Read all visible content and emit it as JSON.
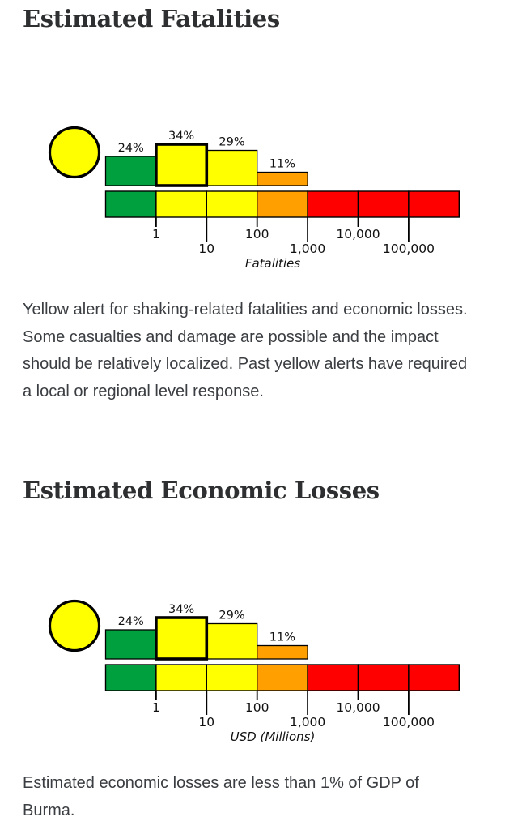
{
  "page": {
    "background": "#ffffff",
    "heading_color": "#2e2f30",
    "body_text_color": "#3a3d41"
  },
  "sections": {
    "fatalities": {
      "heading": "Estimated Fatalities",
      "description": "Yellow alert for shaking-related fatalities and economic losses. Some casualties and damage are possible and the impact should be relatively localized. Past yellow alerts have required a local or regional level response."
    },
    "economic": {
      "heading": "Estimated Economic Losses",
      "description": "Estimated economic losses are less than 1% of GDP of Burma."
    }
  },
  "chart_data": [
    {
      "type": "bar",
      "title": "Estimated Fatalities",
      "xlabel": "Fatalities",
      "x_scale": "log",
      "alert_level": "yellow",
      "alert_color": "#FFFF00",
      "categories": [
        "1 or fewer",
        "1-10",
        "10-100",
        "100-1,000"
      ],
      "values": [
        24,
        34,
        29,
        11
      ],
      "value_unit": "percent probability",
      "highlighted_index": 1,
      "bar_colors": [
        "#00A03E",
        "#FFFF00",
        "#FFFF00",
        "#FF9F00"
      ],
      "scale_segment_colors": [
        "#00A03E",
        "#FFFF00",
        "#FFFF00",
        "#FF9F00",
        "#FF0000",
        "#FF0000",
        "#FF0000"
      ],
      "tick_labels": [
        "1",
        "10",
        "100",
        "1,000",
        "10,000",
        "100,000"
      ],
      "legend_position": "none",
      "grid": false
    },
    {
      "type": "bar",
      "title": "Estimated Economic Losses",
      "xlabel": "USD (Millions)",
      "x_scale": "log",
      "alert_level": "yellow",
      "alert_color": "#FFFF00",
      "categories": [
        "1 or fewer",
        "1-10",
        "10-100",
        "100-1,000"
      ],
      "values": [
        24,
        34,
        29,
        11
      ],
      "value_unit": "percent probability",
      "highlighted_index": 1,
      "bar_colors": [
        "#00A03E",
        "#FFFF00",
        "#FFFF00",
        "#FF9F00"
      ],
      "scale_segment_colors": [
        "#00A03E",
        "#FFFF00",
        "#FFFF00",
        "#FF9F00",
        "#FF0000",
        "#FF0000",
        "#FF0000"
      ],
      "tick_labels": [
        "1",
        "10",
        "100",
        "1,000",
        "10,000",
        "100,000"
      ],
      "legend_position": "none",
      "grid": false
    }
  ]
}
